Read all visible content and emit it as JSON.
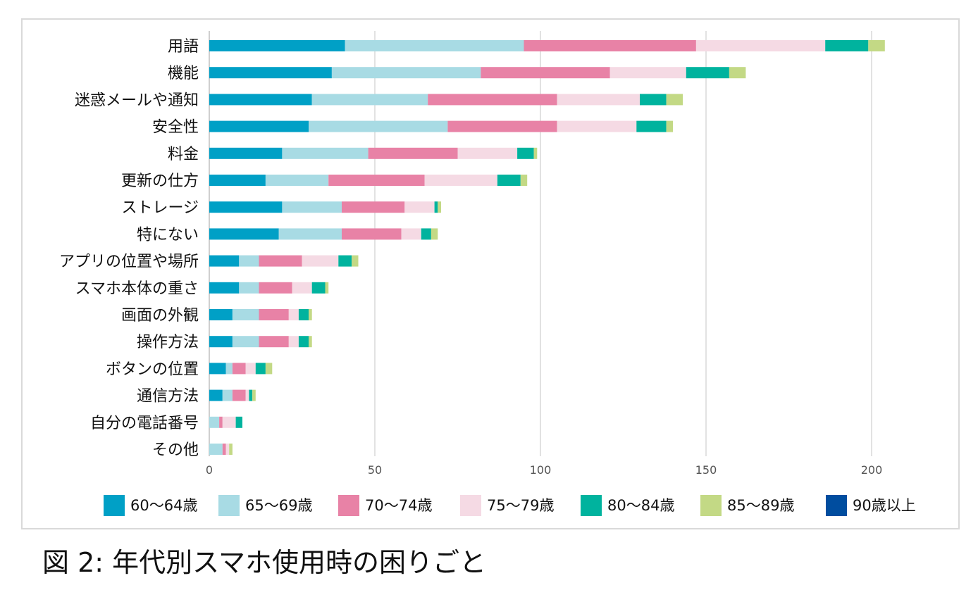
{
  "caption": "図 2: 年代別スマホ使用時の困りごと",
  "chart_data": {
    "type": "bar",
    "orientation": "horizontal",
    "stacked": true,
    "categories": [
      "用語",
      "機能",
      "迷惑メールや通知",
      "安全性",
      "料金",
      "更新の仕方",
      "ストレージ",
      "特にない",
      "アプリの位置や場所",
      "スマホ本体の重さ",
      "画面の外観",
      "操作方法",
      "ボタンの位置",
      "通信方法",
      "自分の電話番号",
      "その他"
    ],
    "series": [
      {
        "name": "60〜64歳",
        "color": "#00a0c6",
        "values": [
          41,
          37,
          31,
          30,
          22,
          17,
          22,
          21,
          9,
          9,
          7,
          7,
          5,
          4,
          0,
          0
        ]
      },
      {
        "name": "65〜69歳",
        "color": "#a8dbe4",
        "values": [
          54,
          45,
          35,
          42,
          26,
          19,
          18,
          19,
          6,
          6,
          8,
          8,
          2,
          3,
          3,
          4
        ]
      },
      {
        "name": "70〜74歳",
        "color": "#e882a6",
        "values": [
          52,
          39,
          39,
          33,
          27,
          29,
          19,
          18,
          13,
          10,
          9,
          9,
          4,
          4,
          1,
          1
        ]
      },
      {
        "name": "75〜79歳",
        "color": "#f5dae4",
        "values": [
          39,
          23,
          25,
          24,
          18,
          22,
          9,
          6,
          11,
          6,
          3,
          3,
          3,
          1,
          4,
          1
        ]
      },
      {
        "name": "80〜84歳",
        "color": "#00b39e",
        "values": [
          13,
          13,
          8,
          9,
          5,
          7,
          1,
          3,
          4,
          4,
          3,
          3,
          3,
          1,
          2,
          0
        ]
      },
      {
        "name": "85〜89歳",
        "color": "#c3d985",
        "values": [
          5,
          5,
          5,
          2,
          1,
          2,
          1,
          2,
          2,
          1,
          1,
          1,
          2,
          1,
          0,
          1
        ]
      },
      {
        "name": "90歳以上",
        "color": "#004d9f",
        "values": [
          0,
          0,
          0,
          0,
          0,
          0,
          0,
          0,
          0,
          0,
          0,
          0,
          0,
          0,
          0,
          0
        ]
      }
    ],
    "xlim": [
      0,
      220
    ],
    "xticks": [
      "0",
      "50",
      "100",
      "150",
      "200"
    ],
    "grid": true,
    "legend": "bottom"
  }
}
